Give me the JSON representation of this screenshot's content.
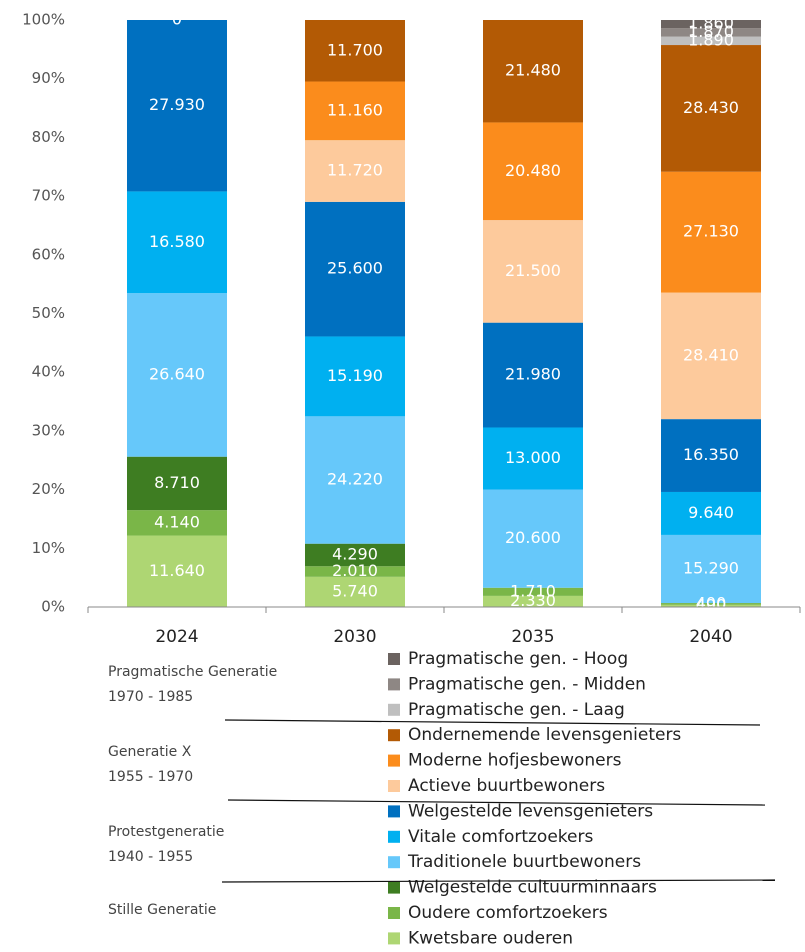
{
  "chart_data": {
    "type": "bar",
    "stacked": "percent",
    "categories": [
      "2024",
      "2030",
      "2035",
      "2040"
    ],
    "ylim": [
      0,
      100
    ],
    "yticks": [
      {
        "value": 0,
        "label": "0%"
      },
      {
        "value": 10,
        "label": "10%"
      },
      {
        "value": 20,
        "label": "20%"
      },
      {
        "value": 30,
        "label": "30%"
      },
      {
        "value": 40,
        "label": "40%"
      },
      {
        "value": 50,
        "label": "50%"
      },
      {
        "value": 60,
        "label": "60%"
      },
      {
        "value": 70,
        "label": "70%"
      },
      {
        "value": 80,
        "label": "80%"
      },
      {
        "value": 90,
        "label": "90%"
      },
      {
        "value": 100,
        "label": "100%"
      }
    ],
    "series": [
      {
        "name": "Kwetsbare ouderen",
        "color": "#aed673",
        "values": [
          11640,
          5740,
          2330,
          490
        ],
        "value_labels": [
          "11.640",
          "5.740",
          "2.330",
          "490"
        ]
      },
      {
        "name": "Oudere comfortzoekers",
        "color": "#7ab648",
        "values": [
          4140,
          2010,
          1710,
          400
        ],
        "value_labels": [
          "4.140",
          "2.010",
          "1.710",
          "400"
        ]
      },
      {
        "name": "Welgestelde cultuurminnaars",
        "color": "#3e7d22",
        "values": [
          8710,
          4290,
          null,
          null
        ],
        "value_labels": [
          "8.710",
          "4.290",
          null,
          null
        ]
      },
      {
        "name": "Traditionele buurtbewoners",
        "color": "#66c8fa",
        "values": [
          26640,
          24220,
          20600,
          15290
        ],
        "value_labels": [
          "26.640",
          "24.220",
          "20.600",
          "15.290"
        ]
      },
      {
        "name": "Vitale comfortzoekers",
        "color": "#00b0f0",
        "values": [
          16580,
          15190,
          13000,
          9640
        ],
        "value_labels": [
          "16.580",
          "15.190",
          "13.000",
          "9.640"
        ]
      },
      {
        "name": "Welgestelde levensgenieters",
        "color": "#0070c0",
        "values": [
          27930,
          25600,
          21980,
          16350
        ],
        "value_labels": [
          "27.930",
          "25.600",
          "21.980",
          "16.350"
        ]
      },
      {
        "name": "Actieve buurtbewoners",
        "color": "#fdca9c",
        "values": [
          0,
          11720,
          21500,
          28410
        ],
        "value_labels": [
          "0",
          "11.720",
          "21.500",
          "28.410"
        ]
      },
      {
        "name": "Moderne hofjesbewoners",
        "color": "#fb8c1c",
        "values": [
          null,
          11160,
          20480,
          27130
        ],
        "value_labels": [
          null,
          "11.160",
          "20.480",
          "27.130"
        ]
      },
      {
        "name": "Ondernemende levensgenieters",
        "color": "#b35a05",
        "values": [
          null,
          11700,
          21480,
          28430
        ],
        "value_labels": [
          null,
          "11.700",
          "21.480",
          "28.430"
        ]
      },
      {
        "name": "Pragmatische gen. - Laag",
        "color": "#bfbfbf",
        "values": [
          null,
          null,
          null,
          1890
        ],
        "value_labels": [
          null,
          null,
          null,
          "1.890"
        ]
      },
      {
        "name": "Pragmatische gen. - Midden",
        "color": "#8e8784",
        "values": [
          null,
          null,
          null,
          1870
        ],
        "value_labels": [
          null,
          null,
          null,
          "1.870"
        ]
      },
      {
        "name": "Pragmatische gen. - Hoog",
        "color": "#6b6360",
        "values": [
          null,
          null,
          null,
          1860
        ],
        "value_labels": [
          null,
          null,
          null,
          "1.860"
        ]
      }
    ],
    "legend_groups": [
      {
        "name": "Pragmatische Generatie",
        "years": "1970 - 1985"
      },
      {
        "name": "Generatie X",
        "years": "1955 - 1970"
      },
      {
        "name": "Protestgeneratie",
        "years": "1940 - 1955"
      },
      {
        "name": "Stille Generatie"
      }
    ]
  }
}
